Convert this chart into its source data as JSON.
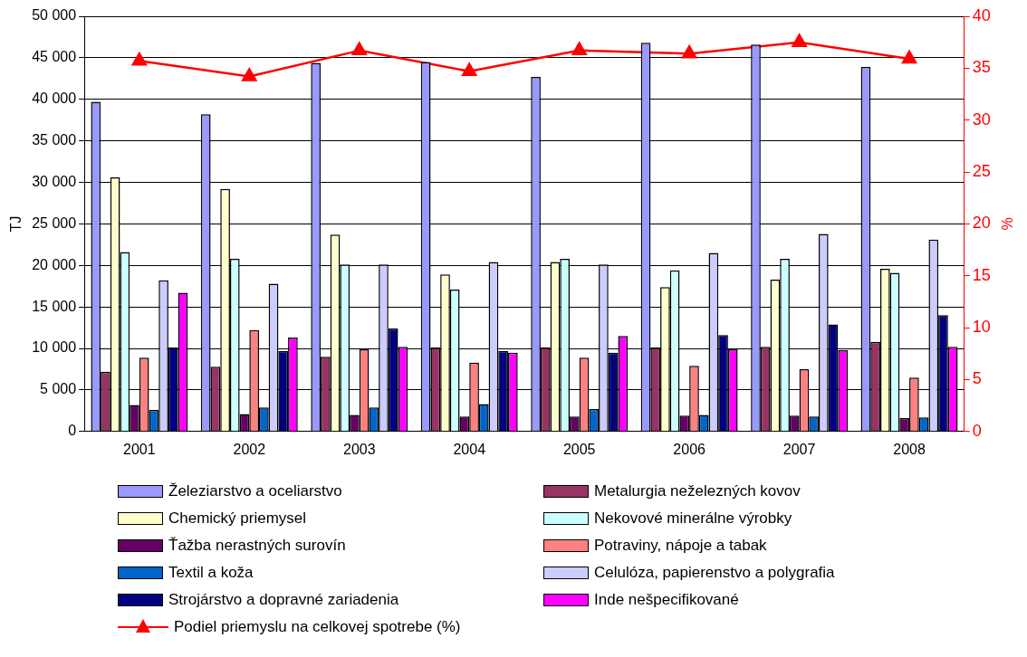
{
  "chart_data": {
    "type": "bar",
    "ylabel": "TJ",
    "y2label": "%",
    "categories": [
      "2001",
      "2002",
      "2003",
      "2004",
      "2005",
      "2006",
      "2007",
      "2008"
    ],
    "series": [
      {
        "name": "Železiarstvo a oceliarstvo",
        "color": "#9999ff",
        "values": [
          39700,
          38200,
          44400,
          44500,
          42700,
          46800,
          46600,
          43900
        ]
      },
      {
        "name": "Metalurgia neželezných kovov",
        "color": "#993366",
        "values": [
          7200,
          7800,
          9000,
          10100,
          10100,
          10100,
          10200,
          10800
        ]
      },
      {
        "name": "Chemický priemysel",
        "color": "#ffffcc",
        "values": [
          30600,
          29200,
          23700,
          18900,
          20400,
          17400,
          18300,
          19600
        ]
      },
      {
        "name": "Nekovové minerálne výrobky",
        "color": "#ccffff",
        "values": [
          21600,
          20800,
          20100,
          17100,
          20800,
          19400,
          20800,
          19100
        ]
      },
      {
        "name": "Ťažba nerastných surovín",
        "color": "#660066",
        "values": [
          3200,
          2100,
          2000,
          1800,
          1800,
          1900,
          1900,
          1600
        ]
      },
      {
        "name": "Potraviny, nápoje a tabak",
        "color": "#ff8080",
        "values": [
          8900,
          12200,
          9900,
          8300,
          8900,
          7900,
          7500,
          6500
        ]
      },
      {
        "name": "Textil a koža",
        "color": "#0066cc",
        "values": [
          2600,
          2900,
          2900,
          3300,
          2700,
          2000,
          1800,
          1700
        ]
      },
      {
        "name": "Celulóza, papierenstvo a polygrafia",
        "color": "#ccccff",
        "values": [
          18200,
          17800,
          20100,
          20400,
          20100,
          21500,
          23800,
          23100
        ]
      },
      {
        "name": "Strojárstvo a dopravné zariadenia",
        "color": "#000080",
        "values": [
          10100,
          9700,
          12400,
          9700,
          9500,
          11600,
          12900,
          14000
        ]
      },
      {
        "name": "Inde nešpecifikované",
        "color": "#ff00ff",
        "values": [
          16700,
          11300,
          10200,
          9500,
          11500,
          9900,
          9800,
          10200
        ]
      },
      {
        "name": "Podiel priemyslu na celkovej spotrebe (%)",
        "color": "#ff0000",
        "type": "line",
        "axis": "y2",
        "marker": "triangle",
        "values": [
          35.7,
          34.2,
          36.7,
          34.7,
          36.7,
          36.4,
          37.5,
          35.9
        ]
      }
    ],
    "ylim": [
      0,
      50000
    ],
    "yticks": [
      0,
      {
        "value": 5000,
        "label": "5 000"
      },
      {
        "value": 10000,
        "label": "10 000"
      },
      {
        "value": 15000,
        "label": "15 000"
      },
      {
        "value": 20000,
        "label": "20 000"
      },
      {
        "value": 25000,
        "label": "25 000"
      },
      {
        "value": 30000,
        "label": "30 000"
      },
      {
        "value": 35000,
        "label": "35 000"
      },
      {
        "value": 40000,
        "label": "40 000"
      },
      {
        "value": 45000,
        "label": "45 000"
      },
      {
        "value": 50000,
        "label": "50 000"
      }
    ],
    "y2lim": [
      0,
      40
    ],
    "y2ticks": [
      0,
      5,
      10,
      15,
      20,
      25,
      30,
      35,
      40
    ],
    "grid": "y",
    "legend": "bottom"
  }
}
